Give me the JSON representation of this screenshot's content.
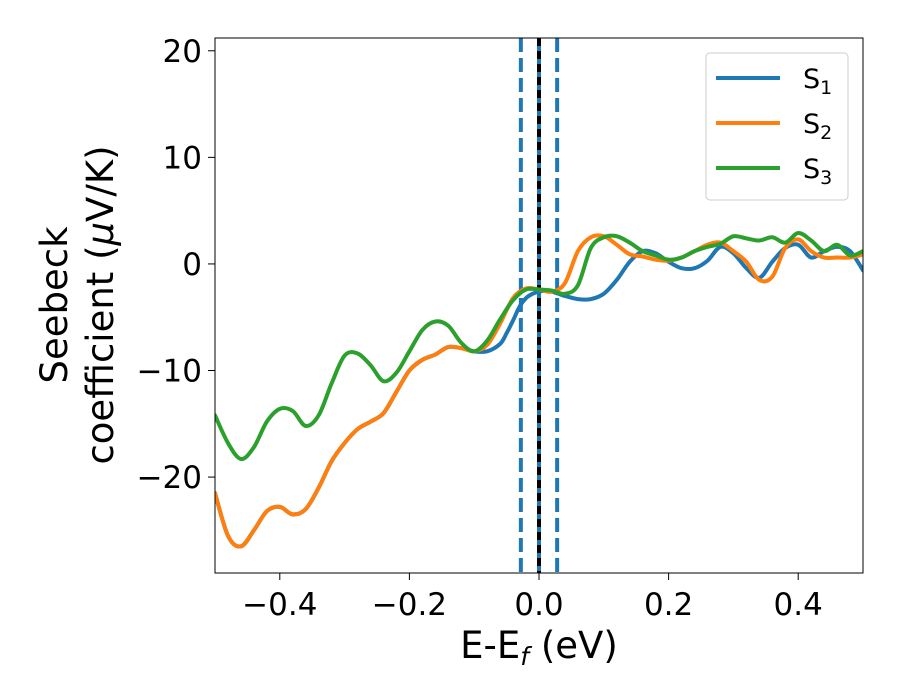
{
  "chart_data": {
    "type": "line",
    "xlabel": {
      "base": "E-E",
      "sub": "f",
      "unit": " (eV)"
    },
    "ylabel": {
      "line1": "Seebeck",
      "line2_prefix": "coefficient  (",
      "mu": "μ",
      "line2_suffix": "V/K)"
    },
    "xlim": [
      -0.5,
      0.5
    ],
    "ylim": [
      -29,
      21.2
    ],
    "x_ticks": [
      -0.4,
      -0.2,
      0.0,
      0.2,
      0.4
    ],
    "x_tick_labels": [
      "−0.4",
      "−0.2",
      "0.0",
      "0.2",
      "0.4"
    ],
    "y_ticks": [
      -20,
      -10,
      0,
      10,
      20
    ],
    "y_tick_labels": [
      "−20",
      "−10",
      "0",
      "10",
      "20"
    ],
    "grid": false,
    "legend_position": "top-right",
    "vertical_lines": [
      {
        "x": -0.028,
        "style": "dashed",
        "color": "#1f77b4"
      },
      {
        "x": 0.028,
        "style": "dashed",
        "color": "#1f77b4"
      },
      {
        "x": 0.0,
        "style": "solid",
        "color": "#1f77b4"
      },
      {
        "x": 0.0,
        "style": "dashed",
        "color": "#000000"
      }
    ],
    "series": [
      {
        "name": "S",
        "sub": "1",
        "color": "#1f77b4",
        "x": [
          -0.5,
          -0.48,
          -0.46,
          -0.44,
          -0.42,
          -0.4,
          -0.38,
          -0.36,
          -0.34,
          -0.32,
          -0.3,
          -0.28,
          -0.26,
          -0.24,
          -0.22,
          -0.2,
          -0.18,
          -0.16,
          -0.14,
          -0.12,
          -0.1,
          -0.08,
          -0.06,
          -0.05,
          -0.04,
          -0.03,
          -0.02,
          -0.01,
          0.0,
          0.01,
          0.02,
          0.03,
          0.04,
          0.06,
          0.08,
          0.1,
          0.12,
          0.14,
          0.16,
          0.18,
          0.2,
          0.22,
          0.24,
          0.26,
          0.28,
          0.3,
          0.32,
          0.34,
          0.36,
          0.38,
          0.4,
          0.42,
          0.44,
          0.46,
          0.48,
          0.5
        ],
        "y": [
          -21.5,
          -25.5,
          -26.5,
          -25,
          -23.2,
          -22.8,
          -23.5,
          -23,
          -21,
          -18.5,
          -16.8,
          -15.5,
          -14.8,
          -14,
          -12,
          -10,
          -9,
          -8.5,
          -7.8,
          -7.9,
          -8.2,
          -8.2,
          -7.5,
          -6.5,
          -5.3,
          -4,
          -3.2,
          -2.8,
          -2.6,
          -2.5,
          -2.6,
          -2.8,
          -3.0,
          -3.3,
          -3.3,
          -2.8,
          -1.5,
          0.2,
          1.2,
          1.0,
          0.2,
          -0.4,
          -0.4,
          0.3,
          1.6,
          1.0,
          -0.4,
          -1.3,
          0.2,
          1.5,
          1.8,
          0.6,
          1.2,
          1.6,
          1.2,
          -0.6
        ]
      },
      {
        "name": "S",
        "sub": "2",
        "color": "#ff7f0e",
        "x": [
          -0.5,
          -0.48,
          -0.46,
          -0.44,
          -0.42,
          -0.4,
          -0.38,
          -0.36,
          -0.34,
          -0.32,
          -0.3,
          -0.28,
          -0.26,
          -0.24,
          -0.22,
          -0.2,
          -0.18,
          -0.16,
          -0.14,
          -0.12,
          -0.1,
          -0.08,
          -0.06,
          -0.04,
          -0.02,
          0.0,
          0.02,
          0.04,
          0.06,
          0.08,
          0.1,
          0.12,
          0.14,
          0.16,
          0.18,
          0.2,
          0.22,
          0.24,
          0.26,
          0.28,
          0.3,
          0.32,
          0.34,
          0.36,
          0.38,
          0.4,
          0.42,
          0.44,
          0.46,
          0.48,
          0.5
        ],
        "y": [
          -21.5,
          -25.5,
          -26.5,
          -25,
          -23.2,
          -22.8,
          -23.5,
          -23,
          -21,
          -18.5,
          -16.8,
          -15.5,
          -14.8,
          -14,
          -12,
          -10,
          -9,
          -8.5,
          -7.8,
          -7.9,
          -8.2,
          -7.6,
          -5.6,
          -3.2,
          -2.3,
          -2.4,
          -2.6,
          -1.8,
          1.2,
          2.5,
          2.6,
          1.8,
          0.9,
          0.7,
          0.4,
          0.3,
          0.6,
          1.2,
          1.8,
          2.0,
          1.2,
          0.2,
          -1.5,
          -1.2,
          1.5,
          2.3,
          1.2,
          0.6,
          0.6,
          0.6,
          0.9
        ]
      },
      {
        "name": "S",
        "sub": "3",
        "color": "#2ca02c",
        "x": [
          -0.5,
          -0.48,
          -0.46,
          -0.44,
          -0.42,
          -0.4,
          -0.38,
          -0.36,
          -0.34,
          -0.32,
          -0.3,
          -0.28,
          -0.26,
          -0.24,
          -0.22,
          -0.2,
          -0.18,
          -0.16,
          -0.14,
          -0.12,
          -0.1,
          -0.08,
          -0.06,
          -0.04,
          -0.02,
          0.0,
          0.02,
          0.04,
          0.06,
          0.08,
          0.1,
          0.12,
          0.14,
          0.16,
          0.18,
          0.2,
          0.22,
          0.24,
          0.26,
          0.28,
          0.3,
          0.32,
          0.34,
          0.36,
          0.38,
          0.4,
          0.42,
          0.44,
          0.46,
          0.48,
          0.5
        ],
        "y": [
          -14.2,
          -16.8,
          -18.3,
          -17.2,
          -14.8,
          -13.6,
          -13.8,
          -15.2,
          -14.2,
          -11.2,
          -8.6,
          -8.4,
          -9.5,
          -11,
          -10.2,
          -8.2,
          -6.2,
          -5.4,
          -5.8,
          -7.4,
          -8.2,
          -7.2,
          -5.2,
          -3.4,
          -2.4,
          -2.4,
          -2.5,
          -2.8,
          -2.0,
          1.5,
          2.5,
          2.6,
          2.0,
          1.2,
          0.8,
          0.4,
          0.6,
          1.2,
          1.6,
          1.9,
          2.6,
          2.4,
          2.2,
          2.5,
          2.0,
          2.9,
          2.2,
          1.2,
          1.8,
          0.8,
          1.2
        ]
      }
    ]
  }
}
